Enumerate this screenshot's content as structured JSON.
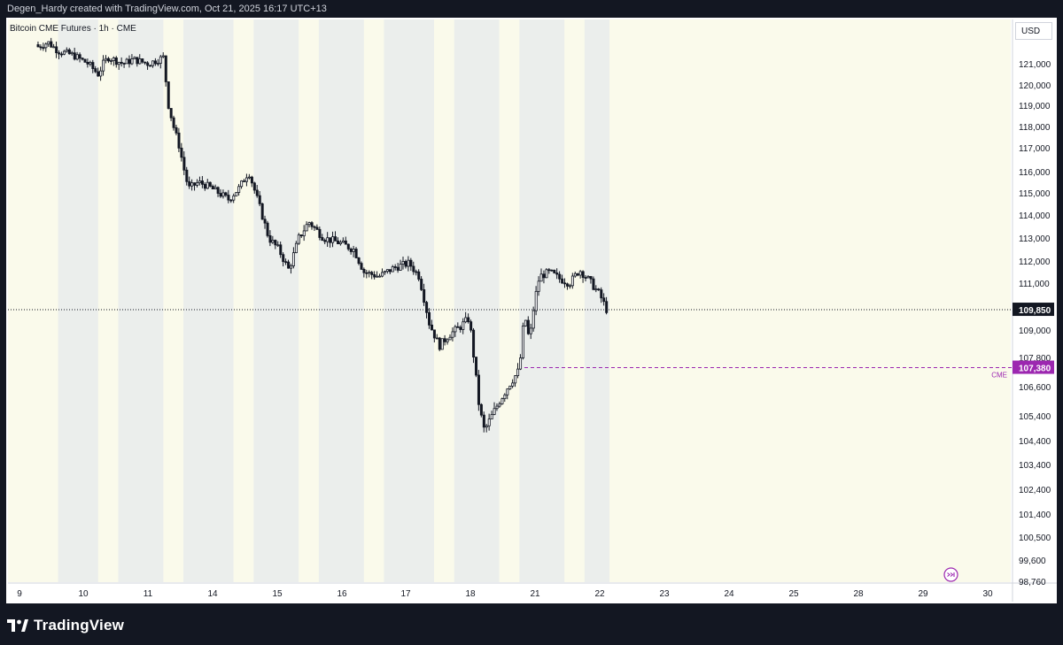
{
  "header": {
    "caption": "Degen_Hardy created with TradingView.com, Oct 21, 2025 16:17 UTC+13"
  },
  "legend": {
    "text": "Bitcoin CME Futures · 1h · CME"
  },
  "currency_button": "USD",
  "branding": {
    "name": "TradingView"
  },
  "colors": {
    "background": "#131722",
    "chart_bg": "#ffffff",
    "session_light": "#fafaeb",
    "session_dark": "#ebeeec",
    "candle": "#131722",
    "last_price_line": "#131722",
    "cme_level": "#9c27b0",
    "axis_text": "#131722"
  },
  "chart_data": {
    "type": "candlestick",
    "symbol": "Bitcoin CME Futures",
    "interval": "1h",
    "exchange": "CME",
    "y_axis": {
      "ticks": [
        121000,
        120000,
        119000,
        118000,
        117000,
        116000,
        115000,
        114000,
        113000,
        112000,
        111000,
        110000,
        109000,
        107800,
        106600,
        105400,
        104400,
        103400,
        102400,
        101400,
        100500,
        99600,
        98760
      ],
      "tick_labels": [
        "121,000",
        "120,000",
        "119,000",
        "118,000",
        "117,000",
        "116,000",
        "115,000",
        "114,000",
        "113,000",
        "112,000",
        "111,000",
        "110,000",
        "109,000",
        "107,800",
        "106,600",
        "105,400",
        "104,400",
        "103,400",
        "102,400",
        "101,400",
        "100,500",
        "99,600",
        "98,760"
      ],
      "label_offsets": [
        0,
        0,
        0,
        0,
        0,
        0,
        0,
        0,
        0,
        0,
        0,
        0,
        0,
        0,
        0,
        0,
        0,
        0,
        0,
        0,
        0,
        0,
        0
      ]
    },
    "x_axis": {
      "tick_labels": [
        "9",
        "10",
        "11",
        "14",
        "15",
        "16",
        "17",
        "18",
        "21",
        "22",
        "23",
        "24",
        "25",
        "28",
        "29",
        "30"
      ]
    },
    "price_path": [
      [
        0.03,
        121800
      ],
      [
        0.04,
        122000
      ],
      [
        0.05,
        121600
      ],
      [
        0.065,
        121400
      ],
      [
        0.08,
        121000
      ],
      [
        0.09,
        120500
      ],
      [
        0.095,
        121000
      ],
      [
        0.1,
        121300
      ],
      [
        0.115,
        121000
      ],
      [
        0.125,
        121200
      ],
      [
        0.14,
        121000
      ],
      [
        0.155,
        121300
      ],
      [
        0.16,
        119000
      ],
      [
        0.165,
        118000
      ],
      [
        0.17,
        117200
      ],
      [
        0.18,
        115200
      ],
      [
        0.19,
        115500
      ],
      [
        0.2,
        115300
      ],
      [
        0.21,
        115000
      ],
      [
        0.22,
        114700
      ],
      [
        0.23,
        115200
      ],
      [
        0.24,
        116000
      ],
      [
        0.25,
        114500
      ],
      [
        0.26,
        113000
      ],
      [
        0.27,
        112500
      ],
      [
        0.28,
        111600
      ],
      [
        0.29,
        113000
      ],
      [
        0.3,
        113700
      ],
      [
        0.315,
        113000
      ],
      [
        0.33,
        112800
      ],
      [
        0.345,
        112500
      ],
      [
        0.355,
        111500
      ],
      [
        0.37,
        111300
      ],
      [
        0.385,
        111700
      ],
      [
        0.4,
        111900
      ],
      [
        0.41,
        111300
      ],
      [
        0.42,
        109300
      ],
      [
        0.43,
        108300
      ],
      [
        0.44,
        108800
      ],
      [
        0.45,
        109100
      ],
      [
        0.46,
        109500
      ],
      [
        0.465,
        107600
      ],
      [
        0.47,
        105700
      ],
      [
        0.475,
        104800
      ],
      [
        0.48,
        105200
      ],
      [
        0.49,
        106000
      ],
      [
        0.5,
        106700
      ],
      [
        0.51,
        107300
      ],
      [
        0.515,
        109700
      ],
      [
        0.52,
        108500
      ],
      [
        0.525,
        110200
      ],
      [
        0.53,
        111300
      ],
      [
        0.54,
        111500
      ],
      [
        0.55,
        111200
      ],
      [
        0.56,
        111000
      ],
      [
        0.57,
        111600
      ],
      [
        0.58,
        111100
      ],
      [
        0.59,
        110500
      ],
      [
        0.597,
        109850
      ]
    ],
    "session_bands": [
      {
        "from": 0.0,
        "to": 0.05,
        "shade": "light"
      },
      {
        "from": 0.05,
        "to": 0.09,
        "shade": "dark"
      },
      {
        "from": 0.09,
        "to": 0.11,
        "shade": "light"
      },
      {
        "from": 0.11,
        "to": 0.155,
        "shade": "dark"
      },
      {
        "from": 0.155,
        "to": 0.175,
        "shade": "light"
      },
      {
        "from": 0.175,
        "to": 0.225,
        "shade": "dark"
      },
      {
        "from": 0.225,
        "to": 0.245,
        "shade": "light"
      },
      {
        "from": 0.245,
        "to": 0.29,
        "shade": "dark"
      },
      {
        "from": 0.29,
        "to": 0.31,
        "shade": "light"
      },
      {
        "from": 0.31,
        "to": 0.355,
        "shade": "dark"
      },
      {
        "from": 0.355,
        "to": 0.375,
        "shade": "light"
      },
      {
        "from": 0.375,
        "to": 0.425,
        "shade": "dark"
      },
      {
        "from": 0.425,
        "to": 0.445,
        "shade": "light"
      },
      {
        "from": 0.445,
        "to": 0.49,
        "shade": "dark"
      },
      {
        "from": 0.49,
        "to": 0.51,
        "shade": "light"
      },
      {
        "from": 0.51,
        "to": 0.555,
        "shade": "dark"
      },
      {
        "from": 0.555,
        "to": 0.575,
        "shade": "light"
      },
      {
        "from": 0.575,
        "to": 0.6,
        "shade": "dark"
      },
      {
        "from": 0.6,
        "to": 1.0,
        "shade": "light"
      }
    ],
    "last_price": {
      "value": 109850,
      "label": "109,850"
    },
    "cme_level": {
      "value": 107380,
      "label": "107,380",
      "tag": "CME"
    }
  }
}
